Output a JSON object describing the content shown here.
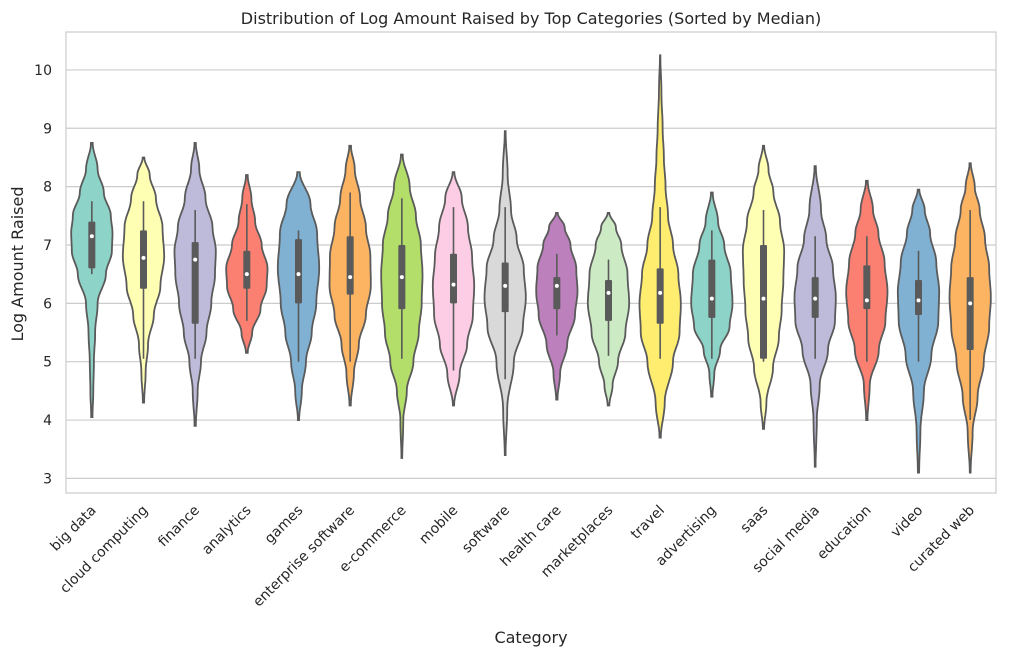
{
  "chart_data": {
    "type": "violin",
    "title": "Distribution of Log Amount Raised by Top Categories (Sorted by Median)",
    "xlabel": "Category",
    "ylabel": "Log Amount Raised",
    "ylim": [
      2.75,
      10.65
    ],
    "yticks": [
      3,
      4,
      5,
      6,
      7,
      8,
      9,
      10
    ],
    "grid": "horizontal",
    "categories": [
      {
        "name": "big data",
        "color": "#8dd3c7",
        "min": 4.05,
        "max": 8.75,
        "whisker_low": 6.5,
        "whisker_high": 7.75,
        "q1": 6.6,
        "q3": 7.4,
        "median": 7.15,
        "profile": [
          [
            4.05,
            0.03
          ],
          [
            4.5,
            0.07
          ],
          [
            5.0,
            0.1
          ],
          [
            5.5,
            0.16
          ],
          [
            6.0,
            0.28
          ],
          [
            6.5,
            0.68
          ],
          [
            6.9,
            0.97
          ],
          [
            7.2,
            1.0
          ],
          [
            7.5,
            0.92
          ],
          [
            7.9,
            0.58
          ],
          [
            8.3,
            0.28
          ],
          [
            8.75,
            0.04
          ]
        ]
      },
      {
        "name": "cloud computing",
        "color": "#ffffb3",
        "min": 4.3,
        "max": 8.5,
        "whisker_low": 5.05,
        "whisker_high": 7.75,
        "q1": 6.25,
        "q3": 7.25,
        "median": 6.78,
        "profile": [
          [
            4.3,
            0.03
          ],
          [
            4.8,
            0.1
          ],
          [
            5.3,
            0.22
          ],
          [
            5.8,
            0.5
          ],
          [
            6.3,
            0.82
          ],
          [
            6.8,
            1.0
          ],
          [
            7.3,
            0.92
          ],
          [
            7.8,
            0.6
          ],
          [
            8.2,
            0.3
          ],
          [
            8.5,
            0.04
          ]
        ]
      },
      {
        "name": "finance",
        "color": "#bebada",
        "min": 3.9,
        "max": 8.75,
        "whisker_low": 5.05,
        "whisker_high": 7.6,
        "q1": 5.65,
        "q3": 7.05,
        "median": 6.75,
        "profile": [
          [
            3.9,
            0.03
          ],
          [
            4.5,
            0.12
          ],
          [
            5.0,
            0.28
          ],
          [
            5.5,
            0.55
          ],
          [
            6.0,
            0.78
          ],
          [
            6.5,
            0.96
          ],
          [
            6.9,
            1.0
          ],
          [
            7.3,
            0.84
          ],
          [
            7.8,
            0.5
          ],
          [
            8.3,
            0.2
          ],
          [
            8.75,
            0.03
          ]
        ]
      },
      {
        "name": "analytics",
        "color": "#fb8072",
        "min": 5.15,
        "max": 8.2,
        "whisker_low": 5.7,
        "whisker_high": 7.7,
        "q1": 6.25,
        "q3": 6.9,
        "median": 6.5,
        "profile": [
          [
            5.15,
            0.04
          ],
          [
            5.5,
            0.26
          ],
          [
            5.9,
            0.66
          ],
          [
            6.3,
            0.96
          ],
          [
            6.6,
            1.0
          ],
          [
            7.0,
            0.72
          ],
          [
            7.4,
            0.4
          ],
          [
            7.8,
            0.22
          ],
          [
            8.2,
            0.04
          ]
        ]
      },
      {
        "name": "games",
        "color": "#80b1d3",
        "min": 4.0,
        "max": 8.25,
        "whisker_low": 5.0,
        "whisker_high": 7.25,
        "q1": 6.0,
        "q3": 7.1,
        "median": 6.5,
        "profile": [
          [
            4.0,
            0.03
          ],
          [
            4.5,
            0.16
          ],
          [
            5.0,
            0.36
          ],
          [
            5.5,
            0.64
          ],
          [
            6.0,
            0.86
          ],
          [
            6.6,
            1.0
          ],
          [
            7.2,
            0.9
          ],
          [
            7.7,
            0.58
          ],
          [
            8.25,
            0.06
          ]
        ]
      },
      {
        "name": "enterprise software",
        "color": "#fdb462",
        "min": 4.25,
        "max": 8.7,
        "whisker_low": 5.0,
        "whisker_high": 7.9,
        "q1": 6.15,
        "q3": 7.15,
        "median": 6.45,
        "profile": [
          [
            4.25,
            0.03
          ],
          [
            4.8,
            0.18
          ],
          [
            5.3,
            0.42
          ],
          [
            5.8,
            0.76
          ],
          [
            6.3,
            1.0
          ],
          [
            6.8,
            0.98
          ],
          [
            7.3,
            0.76
          ],
          [
            7.8,
            0.48
          ],
          [
            8.3,
            0.22
          ],
          [
            8.7,
            0.04
          ]
        ]
      },
      {
        "name": "e-commerce",
        "color": "#b3de69",
        "min": 3.35,
        "max": 8.55,
        "whisker_low": 5.05,
        "whisker_high": 7.8,
        "q1": 5.9,
        "q3": 7.0,
        "median": 6.45,
        "profile": [
          [
            3.35,
            0.02
          ],
          [
            4.0,
            0.07
          ],
          [
            4.5,
            0.24
          ],
          [
            5.0,
            0.56
          ],
          [
            5.5,
            0.82
          ],
          [
            6.0,
            0.96
          ],
          [
            6.5,
            1.0
          ],
          [
            7.0,
            0.92
          ],
          [
            7.5,
            0.68
          ],
          [
            8.0,
            0.38
          ],
          [
            8.55,
            0.04
          ]
        ]
      },
      {
        "name": "mobile",
        "color": "#fccde5",
        "min": 4.25,
        "max": 8.25,
        "whisker_low": 4.85,
        "whisker_high": 7.65,
        "q1": 6.0,
        "q3": 6.85,
        "median": 6.32,
        "profile": [
          [
            4.25,
            0.03
          ],
          [
            4.8,
            0.3
          ],
          [
            5.3,
            0.66
          ],
          [
            5.8,
            0.94
          ],
          [
            6.3,
            1.0
          ],
          [
            6.8,
            0.9
          ],
          [
            7.3,
            0.7
          ],
          [
            7.8,
            0.4
          ],
          [
            8.25,
            0.04
          ]
        ]
      },
      {
        "name": "software",
        "color": "#d9d9d9",
        "min": 3.4,
        "max": 8.95,
        "whisker_low": 4.7,
        "whisker_high": 7.65,
        "q1": 5.85,
        "q3": 6.7,
        "median": 6.3,
        "profile": [
          [
            3.4,
            0.02
          ],
          [
            4.2,
            0.1
          ],
          [
            5.0,
            0.42
          ],
          [
            5.6,
            0.86
          ],
          [
            6.1,
            1.0
          ],
          [
            6.6,
            0.9
          ],
          [
            7.1,
            0.56
          ],
          [
            7.6,
            0.28
          ],
          [
            8.2,
            0.12
          ],
          [
            8.95,
            0.02
          ]
        ]
      },
      {
        "name": "health care",
        "color": "#bc80bd",
        "min": 4.35,
        "max": 7.55,
        "whisker_low": 5.45,
        "whisker_high": 6.85,
        "q1": 5.9,
        "q3": 6.45,
        "median": 6.3,
        "profile": [
          [
            4.35,
            0.03
          ],
          [
            4.8,
            0.16
          ],
          [
            5.3,
            0.5
          ],
          [
            5.8,
            0.88
          ],
          [
            6.2,
            1.0
          ],
          [
            6.6,
            0.94
          ],
          [
            7.0,
            0.66
          ],
          [
            7.3,
            0.38
          ],
          [
            7.55,
            0.04
          ]
        ]
      },
      {
        "name": "marketplaces",
        "color": "#ccebc5",
        "min": 4.25,
        "max": 7.55,
        "whisker_low": 5.1,
        "whisker_high": 6.75,
        "q1": 5.7,
        "q3": 6.4,
        "median": 6.18,
        "profile": [
          [
            4.25,
            0.04
          ],
          [
            4.6,
            0.2
          ],
          [
            5.0,
            0.46
          ],
          [
            5.5,
            0.82
          ],
          [
            6.0,
            1.0
          ],
          [
            6.5,
            0.92
          ],
          [
            7.0,
            0.62
          ],
          [
            7.3,
            0.36
          ],
          [
            7.55,
            0.04
          ]
        ]
      },
      {
        "name": "travel",
        "color": "#ffed6f",
        "min": 3.7,
        "max": 10.25,
        "whisker_low": 5.05,
        "whisker_high": 7.65,
        "q1": 5.65,
        "q3": 6.6,
        "median": 6.18,
        "profile": [
          [
            3.7,
            0.03
          ],
          [
            4.3,
            0.22
          ],
          [
            5.0,
            0.62
          ],
          [
            5.5,
            0.94
          ],
          [
            6.0,
            1.0
          ],
          [
            6.5,
            0.88
          ],
          [
            7.0,
            0.62
          ],
          [
            7.5,
            0.38
          ],
          [
            8.0,
            0.26
          ],
          [
            8.5,
            0.18
          ],
          [
            9.0,
            0.12
          ],
          [
            9.6,
            0.06
          ],
          [
            10.25,
            0.01
          ]
        ]
      },
      {
        "name": "advertising",
        "color": "#8dd3c7",
        "min": 4.4,
        "max": 7.9,
        "whisker_low": 5.05,
        "whisker_high": 7.25,
        "q1": 5.75,
        "q3": 6.75,
        "median": 6.08,
        "profile": [
          [
            4.4,
            0.03
          ],
          [
            4.8,
            0.12
          ],
          [
            5.2,
            0.4
          ],
          [
            5.6,
            0.86
          ],
          [
            6.0,
            1.0
          ],
          [
            6.5,
            0.92
          ],
          [
            7.0,
            0.6
          ],
          [
            7.4,
            0.3
          ],
          [
            7.9,
            0.04
          ]
        ]
      },
      {
        "name": "saas",
        "color": "#ffffb3",
        "min": 3.85,
        "max": 8.7,
        "whisker_low": 5.0,
        "whisker_high": 7.6,
        "q1": 5.05,
        "q3": 7.0,
        "median": 6.08,
        "profile": [
          [
            3.85,
            0.03
          ],
          [
            4.3,
            0.14
          ],
          [
            4.9,
            0.46
          ],
          [
            5.4,
            0.74
          ],
          [
            5.9,
            0.88
          ],
          [
            6.4,
            0.96
          ],
          [
            6.9,
            1.0
          ],
          [
            7.4,
            0.8
          ],
          [
            7.9,
            0.48
          ],
          [
            8.3,
            0.24
          ],
          [
            8.7,
            0.03
          ]
        ]
      },
      {
        "name": "social media",
        "color": "#bebada",
        "min": 3.2,
        "max": 8.35,
        "whisker_low": 5.05,
        "whisker_high": 7.15,
        "q1": 5.75,
        "q3": 6.45,
        "median": 6.08,
        "profile": [
          [
            3.2,
            0.02
          ],
          [
            4.0,
            0.08
          ],
          [
            4.6,
            0.22
          ],
          [
            5.2,
            0.62
          ],
          [
            5.7,
            0.96
          ],
          [
            6.1,
            1.0
          ],
          [
            6.6,
            0.86
          ],
          [
            7.1,
            0.54
          ],
          [
            7.6,
            0.28
          ],
          [
            8.35,
            0.03
          ]
        ]
      },
      {
        "name": "education",
        "color": "#fb8072",
        "min": 4.0,
        "max": 8.1,
        "whisker_low": 5.0,
        "whisker_high": 7.15,
        "q1": 5.9,
        "q3": 6.65,
        "median": 6.05,
        "profile": [
          [
            4.0,
            0.03
          ],
          [
            4.6,
            0.14
          ],
          [
            5.2,
            0.58
          ],
          [
            5.7,
            0.9
          ],
          [
            6.2,
            1.0
          ],
          [
            6.7,
            0.86
          ],
          [
            7.2,
            0.56
          ],
          [
            7.6,
            0.3
          ],
          [
            8.1,
            0.04
          ]
        ]
      },
      {
        "name": "video",
        "color": "#80b1d3",
        "min": 3.1,
        "max": 7.95,
        "whisker_low": 5.0,
        "whisker_high": 6.9,
        "q1": 5.8,
        "q3": 6.4,
        "median": 6.05,
        "profile": [
          [
            3.1,
            0.03
          ],
          [
            3.8,
            0.09
          ],
          [
            4.5,
            0.26
          ],
          [
            5.1,
            0.62
          ],
          [
            5.7,
            0.96
          ],
          [
            6.2,
            1.0
          ],
          [
            6.7,
            0.86
          ],
          [
            7.2,
            0.56
          ],
          [
            7.6,
            0.3
          ],
          [
            7.95,
            0.04
          ]
        ]
      },
      {
        "name": "curated web",
        "color": "#fdb462",
        "min": 3.1,
        "max": 8.4,
        "whisker_low": 4.0,
        "whisker_high": 7.6,
        "q1": 5.2,
        "q3": 6.45,
        "median": 6.0,
        "profile": [
          [
            3.1,
            0.02
          ],
          [
            3.8,
            0.12
          ],
          [
            4.4,
            0.36
          ],
          [
            5.0,
            0.66
          ],
          [
            5.6,
            0.92
          ],
          [
            6.1,
            1.0
          ],
          [
            6.6,
            0.92
          ],
          [
            7.1,
            0.72
          ],
          [
            7.6,
            0.46
          ],
          [
            8.0,
            0.22
          ],
          [
            8.4,
            0.03
          ]
        ]
      }
    ]
  }
}
